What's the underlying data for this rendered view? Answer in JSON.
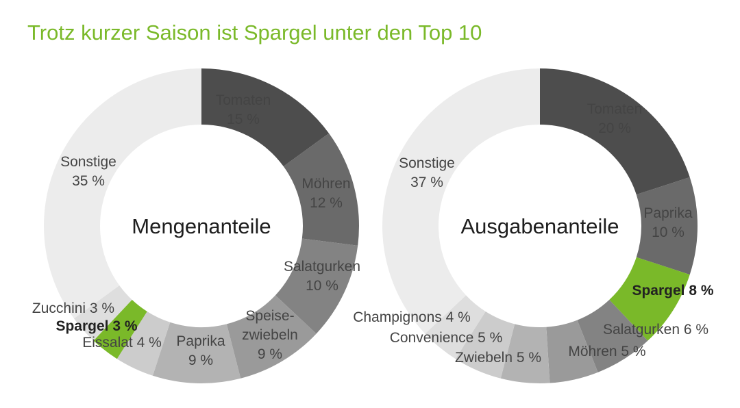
{
  "title": "Trotz kurzer Saison ist Spargel unter den Top 10",
  "chart_data": [
    {
      "type": "pie",
      "variant": "donut",
      "center_label": "Mengenanteile",
      "unit": "%",
      "segments": [
        {
          "name": "Tomaten",
          "value": 15,
          "color": "#4d4d4d",
          "label": [
            "Tomaten",
            "15 %"
          ]
        },
        {
          "name": "Möhren",
          "value": 12,
          "color": "#6a6a6a",
          "label": [
            "Möhren",
            "12 %"
          ]
        },
        {
          "name": "Salatgurken",
          "value": 10,
          "color": "#838383",
          "label": [
            "Salatgurken",
            "10 %"
          ]
        },
        {
          "name": "Speisezwiebeln",
          "value": 9,
          "color": "#9a9a9a",
          "label": [
            "Speise-",
            "zwiebeln",
            "9 %"
          ]
        },
        {
          "name": "Paprika",
          "value": 9,
          "color": "#b3b3b3",
          "label": [
            "Paprika",
            "9 %"
          ]
        },
        {
          "name": "Eissalat",
          "value": 4,
          "color": "#cccccc",
          "label": [
            "Eissalat 4 %"
          ]
        },
        {
          "name": "Spargel",
          "value": 3,
          "color": "#7ab929",
          "highlight": true,
          "label": [
            "Spargel 3 %"
          ]
        },
        {
          "name": "Zucchini",
          "value": 3,
          "color": "#dedede",
          "label": [
            "Zucchini 3 %"
          ]
        },
        {
          "name": "Sonstige",
          "value": 35,
          "color": "#ececec",
          "label": [
            "Sonstige",
            "35 %"
          ]
        }
      ]
    },
    {
      "type": "pie",
      "variant": "donut",
      "center_label": "Ausgabenanteile",
      "unit": "%",
      "segments": [
        {
          "name": "Tomaten",
          "value": 20,
          "color": "#4d4d4d",
          "label": [
            "Tomaten",
            "20 %"
          ]
        },
        {
          "name": "Paprika",
          "value": 10,
          "color": "#6a6a6a",
          "label": [
            "Paprika",
            "10 %"
          ]
        },
        {
          "name": "Spargel",
          "value": 8,
          "color": "#7ab929",
          "highlight": true,
          "label": [
            "Spargel 8 %"
          ]
        },
        {
          "name": "Salatgurken",
          "value": 6,
          "color": "#838383",
          "label": [
            "Salatgurken 6 %"
          ]
        },
        {
          "name": "Möhren",
          "value": 5,
          "color": "#9a9a9a",
          "label": [
            "Möhren 5 %"
          ]
        },
        {
          "name": "Zwiebeln",
          "value": 5,
          "color": "#b3b3b3",
          "label": [
            "Zwiebeln 5 %"
          ]
        },
        {
          "name": "Convenience",
          "value": 5,
          "color": "#cccccc",
          "label": [
            "Convenience 5 %"
          ]
        },
        {
          "name": "Champignons",
          "value": 4,
          "color": "#dedede",
          "label": [
            "Champignons 4 %"
          ]
        },
        {
          "name": "Sonstige",
          "value": 37,
          "color": "#ececec",
          "label": [
            "Sonstige",
            "37 %"
          ]
        }
      ]
    }
  ]
}
